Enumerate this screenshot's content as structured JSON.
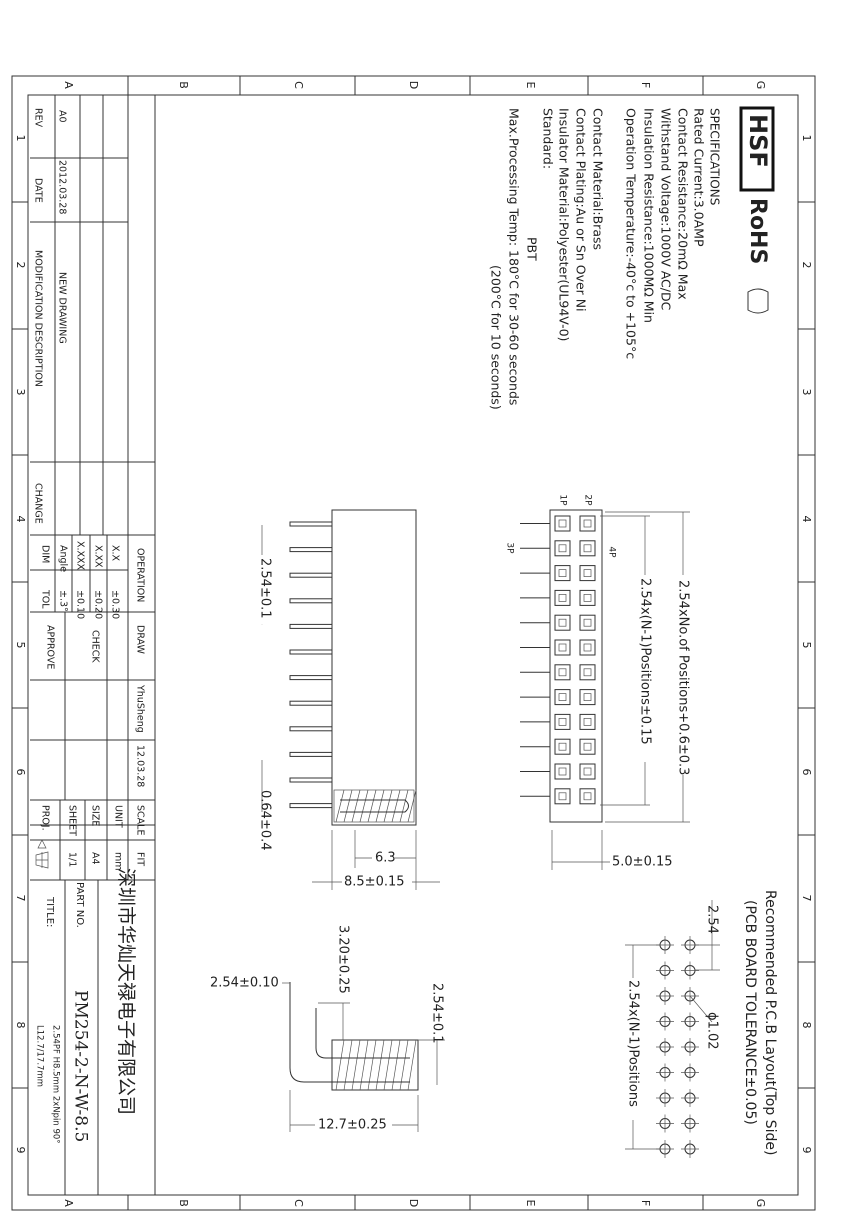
{
  "border": {
    "columns": [
      "A",
      "B",
      "C",
      "D",
      "E",
      "F",
      "G"
    ],
    "rows": [
      "1",
      "2",
      "3",
      "4",
      "5",
      "6",
      "7",
      "8",
      "9"
    ]
  },
  "logo": {
    "hsf": "HSF",
    "rohs": "RoHS"
  },
  "specifications": {
    "heading": "SPECIFICATIONS",
    "lines": [
      "Rated Current:3.0AMP",
      "Contact Resistance:20mΩ Max",
      "Withstand Voltage:1000V AC/DC",
      "Insulation Resistance:1000MΩ Min",
      "Operation Temperature:-40°c to +105°c",
      "Contact Material:Brass",
      "Contact Plating:Au or Sn Over Ni",
      "Insulator Material:Polyester(UL94V-0)",
      "Standard:",
      "PBT",
      "Max.Processing Temp: 180°C for 30-60 seconds",
      "(200°C for 10 seconds)"
    ]
  },
  "revision": {
    "headers": [
      "REV",
      "DATE",
      "MODIFICATION DESCRIPTION",
      "CHANGE"
    ],
    "row": [
      "A0",
      "2012.03.28",
      "NEW DRAWING"
    ]
  },
  "tolerance": {
    "heading": "OPERATION",
    "rows": [
      [
        "X.X",
        "±0.30"
      ],
      [
        "X.XX",
        "±0.20"
      ],
      [
        "X.XXX",
        "±0.10"
      ],
      [
        "Angle",
        "±.3°"
      ],
      [
        "DIM",
        "TOL"
      ]
    ]
  },
  "approval": {
    "draw": "DRAW",
    "check": "CHECK",
    "approve": "APPROVE",
    "drawer": "YhuSheng",
    "date": "12.03.28"
  },
  "sheet_info": [
    [
      "SCALE",
      "FIT"
    ],
    [
      "UNIT",
      "mm"
    ],
    [
      "SIZE",
      "A4"
    ],
    [
      "SHEET",
      "1/1"
    ],
    [
      "PROJ.",
      ""
    ]
  ],
  "title_block": {
    "company": "深圳市华灿天禄电子有限公司",
    "part_no_label": "PART NO.",
    "part_no": "PM254-2-N-W-8.5",
    "title_label": "TITLE:",
    "title_line1": "2.54PF H8.5mm 2xNpin 90°",
    "title_line2": "L12.7/17.7mm"
  },
  "front_view": {
    "pin_labels": [
      "1P",
      "2P",
      "3P",
      "4P"
    ],
    "dim_total": "2.54xNo.of Positions+0.6±0.3",
    "dim_pitch": "2.54x(N-1)Positions±0.15",
    "dim_depth": "5.0±0.15"
  },
  "side_view": {
    "dim_pitch": "2.54±0.1",
    "dim_pin": "0.64±0.4",
    "dim_63": "6.3",
    "dim_85": "8.5±0.15"
  },
  "end_view": {
    "dim_row": "2.54±0.10",
    "dim_320": "3.20±0.25",
    "dim_254": "2.54±0.1",
    "dim_127": "12.7±0.25"
  },
  "pcb_layout": {
    "title": "Recommended P.C.B Layout(Top Side)",
    "tolerance": "(PCB BOARD TOLERANCE±0.05)",
    "dim_pitch": "2.54",
    "dim_hole": "ϕ1.02",
    "dim_span": "2.54x(N-1)Positions"
  }
}
